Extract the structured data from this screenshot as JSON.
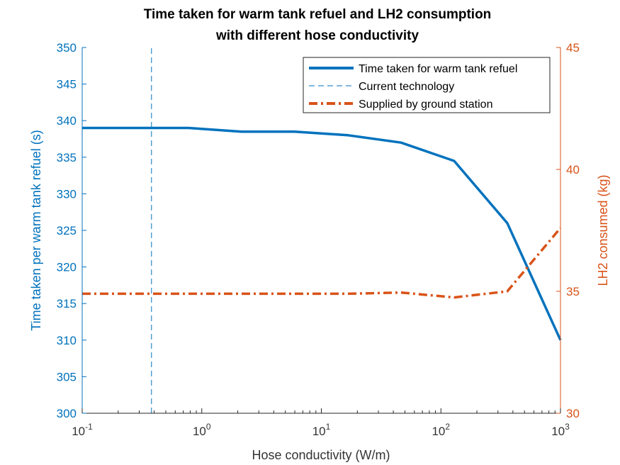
{
  "chart_data": {
    "type": "line",
    "title_lines": [
      "Time taken for warm tank refuel and LH2 consumption",
      "with different hose conductivity"
    ],
    "xlabel": "Hose conductivity (W/m)",
    "ylabel_left": "Time taken per warm tank refuel (s)",
    "ylabel_right": "LH2 consumed (kg)",
    "x_scale": "log",
    "xlim": [
      0.1,
      1000
    ],
    "ylim_left": [
      300,
      350
    ],
    "ylim_right": [
      30,
      45
    ],
    "x_ticks": [
      {
        "value": 0.1,
        "base": "10",
        "exp": "-1"
      },
      {
        "value": 1,
        "base": "10",
        "exp": "0"
      },
      {
        "value": 10,
        "base": "10",
        "exp": "1"
      },
      {
        "value": 100,
        "base": "10",
        "exp": "2"
      },
      {
        "value": 1000,
        "base": "10",
        "exp": "3"
      }
    ],
    "y_ticks_left": [
      "300",
      "305",
      "310",
      "315",
      "320",
      "325",
      "330",
      "335",
      "340",
      "345",
      "350"
    ],
    "y_ticks_right": [
      "30",
      "35",
      "40",
      "45"
    ],
    "legend_position": "top-right",
    "grid": false,
    "series": [
      {
        "name": "Time taken for warm tank refuel",
        "axis": "left",
        "color": "#0072BD",
        "style": "solid",
        "x": [
          0.1,
          0.278,
          0.774,
          2.15,
          5.99,
          16.7,
          46.4,
          129,
          359,
          1000
        ],
        "y": [
          339,
          339,
          339,
          338.5,
          338.5,
          338,
          337,
          334.5,
          326,
          310
        ]
      },
      {
        "name": "Current technology",
        "axis": "left",
        "color": "#0072BD",
        "style": "dashed-vertical",
        "x": [
          0.38,
          0.38
        ],
        "y": [
          300,
          350
        ]
      },
      {
        "name": "Supplied by ground station",
        "axis": "right",
        "color": "#D95319",
        "style": "dashdot",
        "x": [
          0.1,
          0.278,
          0.774,
          2.15,
          5.99,
          16.7,
          46.4,
          129,
          359,
          1000
        ],
        "y": [
          34.9,
          34.9,
          34.9,
          34.9,
          34.9,
          34.9,
          34.95,
          34.75,
          35.0,
          37.6
        ]
      }
    ]
  }
}
